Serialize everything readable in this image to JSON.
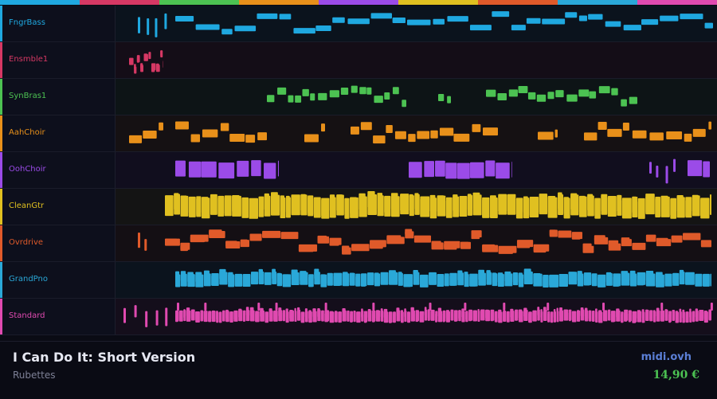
{
  "tracks": [
    {
      "name": "FngrBass",
      "color": "#1fa8e0"
    },
    {
      "name": "Ensmble1",
      "color": "#d63864"
    },
    {
      "name": "SynBras1",
      "color": "#4cc252"
    },
    {
      "name": "AahChoir",
      "color": "#e8901a"
    },
    {
      "name": "OohChoir",
      "color": "#9b4be8"
    },
    {
      "name": "CleanGtr",
      "color": "#e0c020"
    },
    {
      "name": "Ovrdrive",
      "color": "#e05a2a"
    },
    {
      "name": "GrandPno",
      "color": "#2aa8d8"
    },
    {
      "name": "Standard",
      "color": "#e04ab0"
    }
  ],
  "footer": {
    "title": "I Can Do It: Short Version",
    "artist": "Rubettes",
    "site": "midi.ovh",
    "price": "14,90 €"
  }
}
